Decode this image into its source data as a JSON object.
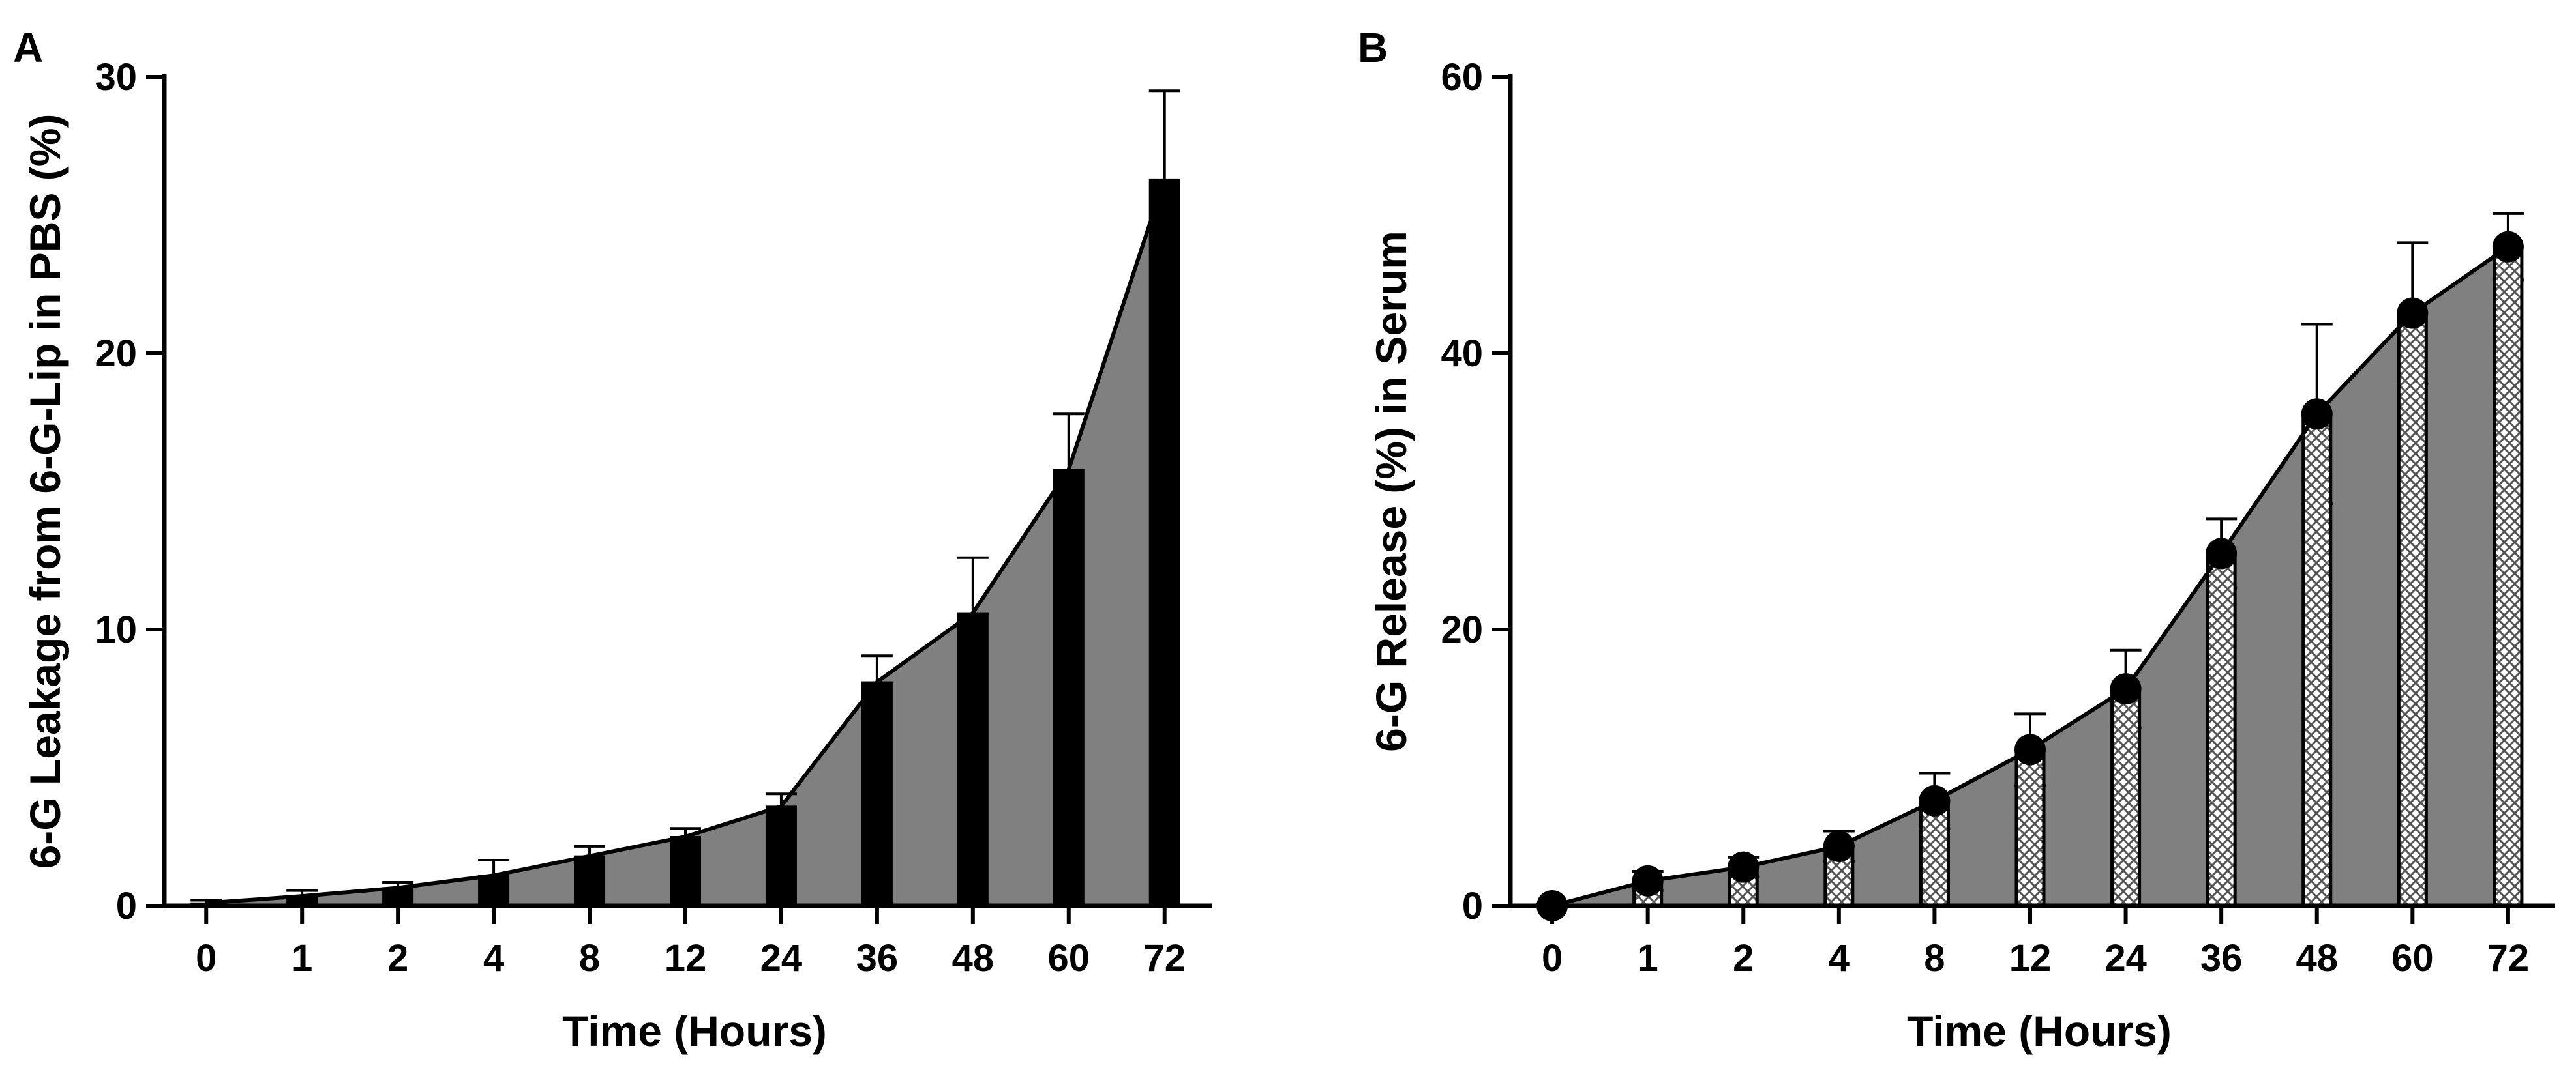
{
  "chart_data": [
    {
      "panel_label": "A",
      "type": "bar",
      "categories": [
        "0",
        "1",
        "2",
        "4",
        "8",
        "12",
        "24",
        "36",
        "48",
        "60",
        "72"
      ],
      "values": [
        0.1,
        0.35,
        0.65,
        1.1,
        1.8,
        2.5,
        3.6,
        8.1,
        10.6,
        15.8,
        26.3
      ],
      "errors": [
        0.1,
        0.2,
        0.2,
        0.55,
        0.35,
        0.3,
        0.45,
        0.95,
        2.0,
        2.0,
        3.2
      ],
      "series": [
        {
          "name": "6-G Leakage",
          "values": [
            0.1,
            0.35,
            0.65,
            1.1,
            1.8,
            2.5,
            3.6,
            8.1,
            10.6,
            15.8,
            26.3
          ]
        }
      ],
      "xlabel": "Time (Hours)",
      "ylabel": "6-G Leakage from 6-G-Lip in PBS (%)",
      "ylim": [
        0,
        30
      ],
      "yticks": [
        0,
        10,
        20,
        30
      ],
      "bar_style": "solid-black",
      "area_fill": "#808080",
      "grid": false
    },
    {
      "panel_label": "B",
      "type": "bar",
      "categories": [
        "0",
        "1",
        "2",
        "4",
        "8",
        "12",
        "24",
        "36",
        "48",
        "60",
        "72"
      ],
      "values": [
        0,
        1.8,
        2.8,
        4.3,
        7.6,
        11.3,
        15.7,
        25.5,
        35.6,
        42.9,
        47.7
      ],
      "errors": [
        0.1,
        0.7,
        0.7,
        1.1,
        2.0,
        2.6,
        2.8,
        2.5,
        6.5,
        5.1,
        2.4
      ],
      "series": [
        {
          "name": "6-G Release",
          "values": [
            0,
            1.8,
            2.8,
            4.3,
            7.6,
            11.3,
            15.7,
            25.5,
            35.6,
            42.9,
            47.7
          ]
        }
      ],
      "xlabel": "Time (Hours)",
      "ylabel": "6-G Release (%) in Serum",
      "ylim": [
        0,
        60
      ],
      "yticks": [
        0,
        20,
        40,
        60
      ],
      "bar_style": "crosshatch",
      "markers": "filled-circle",
      "area_fill": "#808080",
      "grid": false
    }
  ]
}
